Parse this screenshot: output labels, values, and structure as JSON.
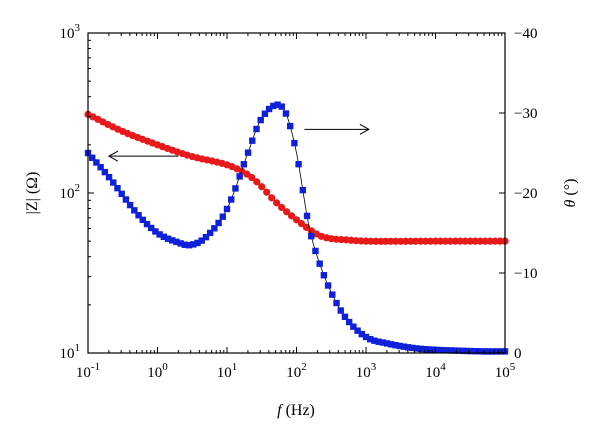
{
  "chart_data": {
    "type": "line",
    "xlabel": "f (Hz)",
    "ylabel_left": "|Z| (Ω)",
    "ylabel_right": "θ (°)",
    "xscale": "log",
    "yscale_left": "log",
    "xlim": [
      0.1,
      100000
    ],
    "ylim_left": [
      10,
      1000
    ],
    "ylim_right": [
      0,
      -40
    ],
    "x_ticks": [
      "10-1",
      "100",
      "101",
      "102",
      "103",
      "104",
      "105"
    ],
    "y_left_ticks": [
      "101",
      "102",
      "103"
    ],
    "y_right_ticks": [
      "0",
      "−10",
      "−20",
      "−30",
      "−40"
    ],
    "grid": false,
    "series": [
      {
        "axis": "left",
        "color": "#e8191b",
        "marker": "circle",
        "x": [
          0.1,
          0.3,
          1,
          3,
          10,
          20,
          30,
          50,
          100,
          200,
          300,
          500,
          1000,
          10000,
          100000
        ],
        "y": [
          310,
          245,
          200,
          170,
          150,
          130,
          112,
          88,
          68,
          55,
          52,
          51,
          50,
          50,
          50
        ]
      },
      {
        "axis": "right",
        "color": "#1020d8",
        "marker": "square",
        "x": [
          0.1,
          0.2,
          0.5,
          1,
          2,
          3,
          5,
          10,
          20,
          30,
          50,
          70,
          100,
          150,
          200,
          300,
          500,
          1000,
          2000,
          5000,
          10000,
          20000,
          50000,
          100000
        ],
        "y": [
          -25,
          -22,
          -17.5,
          -15,
          -13.8,
          -13.5,
          -14.5,
          -18,
          -25,
          -29,
          -31,
          -30,
          -25,
          -16,
          -12,
          -8,
          -4.5,
          -2,
          -1.2,
          -0.6,
          -0.4,
          -0.3,
          -0.2,
          -0.2
        ]
      }
    ],
    "annotations": [
      {
        "type": "arrow",
        "direction": "left",
        "x_from": 2.0,
        "x_to": 0.2,
        "axis": "left",
        "y": 170
      },
      {
        "type": "arrow",
        "direction": "right",
        "x_from": 130,
        "x_to": 1100,
        "axis": "left",
        "y": 250
      }
    ]
  }
}
